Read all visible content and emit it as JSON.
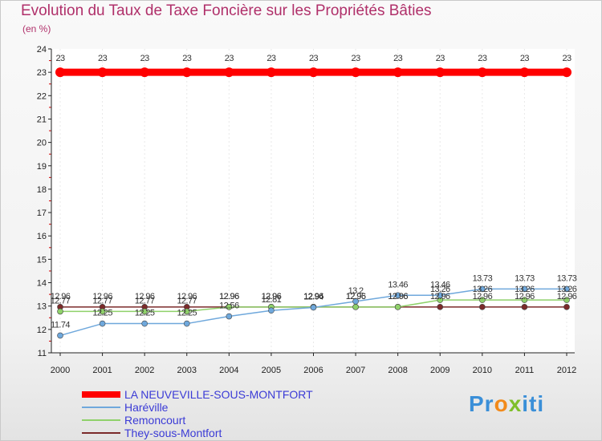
{
  "chart_data": {
    "type": "line",
    "title": "Evolution du Taux de Taxe Foncière sur les Propriétés Bâties",
    "ylabel": "(en %)",
    "xlabel": "",
    "ylim": [
      11,
      24
    ],
    "yticks": [
      11,
      12,
      13,
      14,
      15,
      16,
      17,
      18,
      19,
      20,
      21,
      22,
      23,
      24
    ],
    "categories": [
      "2000",
      "2001",
      "2002",
      "2003",
      "2004",
      "2005",
      "2006",
      "2007",
      "2008",
      "2009",
      "2010",
      "2011",
      "2012"
    ],
    "series": [
      {
        "name": "LA NEUVEVILLE-SOUS-MONTFORT",
        "color": "#ff0000",
        "values": [
          23,
          23,
          23,
          23,
          23,
          23,
          23,
          23,
          23,
          23,
          23,
          23,
          23
        ],
        "labels": [
          "23",
          "23",
          "23",
          "23",
          "23",
          "23",
          "23",
          "23",
          "23",
          "23",
          "23",
          "23",
          "23"
        ]
      },
      {
        "name": "Haréville",
        "color": "#6fa8dc",
        "values": [
          11.74,
          12.25,
          12.25,
          12.25,
          12.56,
          12.81,
          12.94,
          13.2,
          13.46,
          13.46,
          13.73,
          13.73,
          13.73
        ],
        "labels": [
          "11.74",
          "12.25",
          "12.25",
          "12.25",
          "12.56",
          "12.81",
          "12.94",
          "13.2",
          "13.46",
          "13.46",
          "13.73",
          "13.73",
          "13.73"
        ]
      },
      {
        "name": "Remoncourt",
        "color": "#8fd16a",
        "values": [
          12.77,
          12.77,
          12.77,
          12.77,
          12.96,
          12.96,
          12.96,
          12.96,
          12.96,
          13.26,
          13.26,
          13.26,
          13.26
        ],
        "labels": [
          "12.77",
          "12.77",
          "12.77",
          "12.77",
          "12.96",
          "12.96",
          "12.96",
          "12.96",
          "12.96",
          "13.26",
          "13.26",
          "13.26",
          "13.26"
        ]
      },
      {
        "name": "They-sous-Montfort",
        "color": "#7b2a2a",
        "values": [
          12.96,
          12.96,
          12.96,
          12.96,
          12.96,
          12.96,
          12.96,
          12.96,
          12.96,
          12.96,
          12.96,
          12.96,
          12.96
        ],
        "labels": [
          "12.96",
          "12.96",
          "12.96",
          "12.96",
          "12.96",
          "12.96",
          "12.96",
          "12.96",
          "12.96",
          "12.96",
          "12.96",
          "12.96",
          "12.96"
        ]
      }
    ]
  },
  "brand": {
    "part1": "Pr",
    "part2": "o",
    "part3": "x",
    "part4": "iti"
  }
}
